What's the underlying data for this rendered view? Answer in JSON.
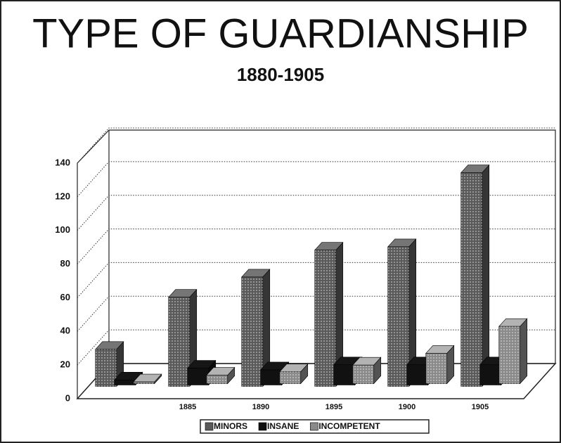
{
  "chart_data": {
    "type": "bar3d",
    "title": "TYPE OF GUARDIANSHIP",
    "subtitle": "1880-1905",
    "categories": [
      null,
      "1885",
      "1890",
      "1895",
      "1900",
      "1905"
    ],
    "series": [
      {
        "name": "MINORS",
        "color": "#5a5a5a",
        "values": [
          22,
          53,
          65,
          81,
          83,
          127
        ]
      },
      {
        "name": "INSANE",
        "color": "#111111",
        "values": [
          3,
          10,
          9,
          12,
          12,
          12
        ]
      },
      {
        "name": "INCOMPETENT",
        "color": "#8a8a8a",
        "values": [
          1,
          5,
          7,
          11,
          18,
          34
        ]
      }
    ],
    "ylim": [
      0,
      140
    ],
    "yticks": [
      0,
      20,
      40,
      60,
      80,
      100,
      120,
      140
    ],
    "grid": true,
    "legend": "bottom"
  }
}
